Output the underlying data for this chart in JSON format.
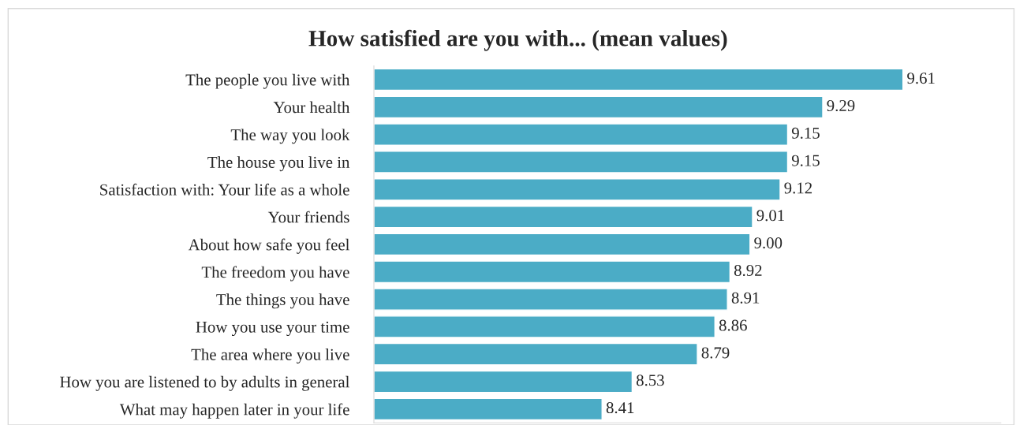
{
  "chart_data": {
    "type": "bar",
    "orientation": "horizontal",
    "title": "How satisfied are you with... (mean values)",
    "categories": [
      "The people you live with",
      "Your health",
      "The way you look",
      "The house you live in",
      "Satisfaction with: Your life as a whole",
      "Your friends",
      "About how safe you feel",
      "The freedom you have",
      "The things you have",
      "How you use your time",
      "The area where you live",
      "How you are listened to by adults in general",
      "What may happen later in your life"
    ],
    "values": [
      9.61,
      9.29,
      9.15,
      9.15,
      9.12,
      9.01,
      9.0,
      8.92,
      8.91,
      8.86,
      8.79,
      8.53,
      8.41
    ],
    "value_labels": [
      "9.61",
      "9.29",
      "9.15",
      "9.15",
      "9.12",
      "9.01",
      "9.00",
      "8.92",
      "8.91",
      "8.86",
      "8.79",
      "8.53",
      "8.41"
    ],
    "color": "#4bacc6",
    "xlim": [
      7.5,
      10
    ],
    "grid": false,
    "legend": false
  }
}
